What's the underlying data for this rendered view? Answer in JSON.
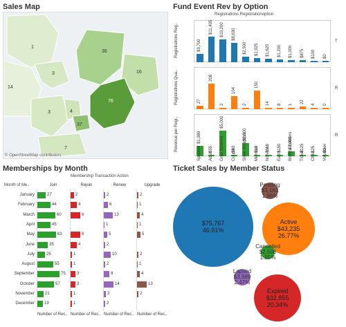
{
  "sales_map": {
    "title": "Sales Map",
    "attribution": "© OpenStreetMap contributors",
    "regions": [
      {
        "label": "1",
        "fill": "#dfeccf"
      },
      {
        "label": "14",
        "fill": "#e6f0da"
      },
      {
        "label": "3",
        "fill": "#d6e8c4"
      },
      {
        "label": "36",
        "fill": "#a9d18e"
      },
      {
        "label": "16",
        "fill": "#c2dea9"
      },
      {
        "label": "76",
        "fill": "#5a9b3a"
      },
      {
        "label": "3",
        "fill": "#d6e8c4"
      },
      {
        "label": "4",
        "fill": "#cfe4bb"
      },
      {
        "label": "37",
        "fill": "#8fc070"
      },
      {
        "label": "7",
        "fill": "#d4e7c1"
      }
    ]
  },
  "fund_event": {
    "title": "Fund Event Rev by Option",
    "header": "Registrations Registrationoption",
    "row_labels": [
      "Registrations Reg..",
      "Registrations Qua..",
      "Revenue per Regi.."
    ],
    "right_labels": [
      "T",
      "R",
      "R"
    ],
    "categories": [
      "Sponsor",
      "Adult",
      "Gold Sponsor",
      "Couple",
      "Silver Sculptors",
      "Member",
      "Non-me..",
      "East L..",
      "Bronze Builders",
      "Ticket",
      "Child",
      "Volunteer"
    ],
    "row1_values": [
      "$3,700",
      "$11,405",
      "$10,200",
      "$8,630",
      "$2,500",
      "$1,925",
      "$1,620",
      "$1,200",
      "$1,000",
      "$875",
      "$100",
      "$0"
    ],
    "row2_values": [
      "27",
      "208",
      "2",
      "104",
      "2",
      "150",
      "14",
      "8",
      "1",
      "22",
      "4",
      "0"
    ],
    "row3_values": [
      "$1,989",
      "$55",
      "$5,000",
      "$83",
      "$2,500",
      "$13",
      "$116",
      "$150",
      "$1,000",
      "$125",
      "$25",
      "$0"
    ],
    "colors": {
      "row1": "#1f77b4",
      "row2": "#ff7f0e",
      "row3": "#2ca02c"
    }
  },
  "memberships": {
    "title": "Memberships by Month",
    "header": "Membership Transaction Action",
    "month_header": "Month of Me..",
    "columns": [
      "Join",
      "Rejoin",
      "Renew",
      "Upgrade"
    ],
    "footer": "Number of Rec..",
    "months": [
      "January",
      "February",
      "March",
      "April",
      "May",
      "June",
      "July",
      "August",
      "September",
      "October",
      "November",
      "December"
    ],
    "join": [
      27,
      44,
      60,
      45,
      63,
      35,
      25,
      55,
      75,
      57,
      21,
      19
    ],
    "rejoin": [
      2,
      4,
      6,
      null,
      6,
      4,
      1,
      1,
      3,
      3,
      1,
      1
    ],
    "renew": [
      2,
      6,
      13,
      1,
      5,
      2,
      10,
      2,
      8,
      14,
      3,
      2
    ],
    "upgrade": [
      2,
      1,
      4,
      1,
      5,
      null,
      2,
      1,
      4,
      13,
      2,
      null
    ],
    "colors": {
      "join": "#2ca02c",
      "rejoin": "#d62728",
      "renew": "#9467bd",
      "upgrade": "#8c564b"
    }
  },
  "ticket_sales": {
    "title": "Ticket Sales by Member Status",
    "bubbles": [
      {
        "name": "",
        "amount": "$75,767",
        "pct": "46.91%",
        "color": "#1f77b4"
      },
      {
        "name": "Active",
        "amount": "$43,235",
        "pct": "26.77%",
        "color": "#ff7f0e"
      },
      {
        "name": "Expired",
        "amount": "$32,855",
        "pct": "20.34%",
        "color": "#d62728"
      },
      {
        "name": "Lapsed",
        "amount": "$3,989",
        "pct": "2.47%",
        "color": "#9467bd"
      },
      {
        "name": "Pending",
        "amount": "$3,163",
        "pct": "1.96%",
        "color": "#8c564b"
      },
      {
        "name": "Cancelled",
        "amount": "$2,506",
        "pct": "1.55%",
        "color": "#2ca02c"
      }
    ]
  }
}
